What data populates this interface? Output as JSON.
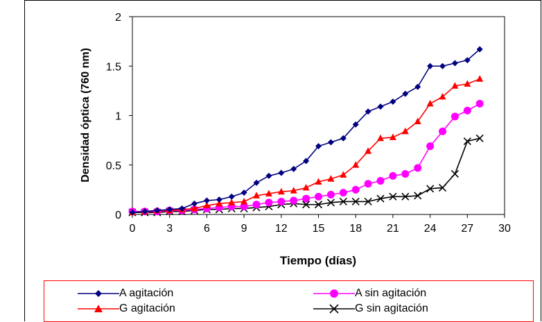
{
  "chart_data": {
    "type": "line",
    "title": "",
    "xlabel": "Tiempo (días)",
    "ylabel": "Densidad óptica (760 nm)",
    "xlim": [
      0,
      30
    ],
    "ylim": [
      0,
      2
    ],
    "x_ticks": [
      "0",
      "3",
      "6",
      "9",
      "12",
      "15",
      "18",
      "21",
      "24",
      "27",
      "30"
    ],
    "y_ticks": [
      "0",
      "0.5",
      "1",
      "1.5",
      "2"
    ],
    "grid": false,
    "legend_position": "bottom",
    "x": [
      0,
      1,
      2,
      3,
      4,
      5,
      6,
      7,
      8,
      9,
      10,
      11,
      12,
      13,
      14,
      15,
      16,
      17,
      18,
      19,
      20,
      21,
      22,
      23,
      24,
      25,
      26,
      27,
      28
    ],
    "series": [
      {
        "name": "A agitación",
        "color": "#000080",
        "marker": "diamond",
        "values": [
          0.02,
          0.03,
          0.04,
          0.05,
          0.06,
          0.11,
          0.14,
          0.15,
          0.18,
          0.22,
          0.32,
          0.39,
          0.42,
          0.46,
          0.54,
          0.69,
          0.73,
          0.77,
          0.91,
          1.04,
          1.09,
          1.14,
          1.22,
          1.29,
          1.5,
          1.5,
          1.53,
          1.56,
          1.67
        ]
      },
      {
        "name": "G agitación",
        "color": "#ff0000",
        "marker": "triangle",
        "values": [
          0.02,
          0.03,
          0.04,
          0.04,
          0.05,
          0.06,
          0.09,
          0.11,
          0.12,
          0.13,
          0.19,
          0.21,
          0.23,
          0.24,
          0.27,
          0.33,
          0.36,
          0.4,
          0.5,
          0.64,
          0.77,
          0.78,
          0.84,
          0.94,
          1.12,
          1.19,
          1.3,
          1.32,
          1.37
        ]
      },
      {
        "name": "A sin agitación",
        "color": "#ff00ff",
        "marker": "circle",
        "values": [
          0.03,
          0.03,
          0.03,
          0.04,
          0.04,
          0.05,
          0.06,
          0.07,
          0.08,
          0.08,
          0.1,
          0.12,
          0.13,
          0.14,
          0.16,
          0.18,
          0.2,
          0.22,
          0.25,
          0.31,
          0.34,
          0.39,
          0.41,
          0.47,
          0.69,
          0.84,
          0.99,
          1.05,
          1.12
        ]
      },
      {
        "name": "G sin agitación",
        "color": "#000000",
        "marker": "x",
        "values": [
          0.02,
          0.02,
          0.02,
          0.03,
          0.03,
          0.04,
          0.05,
          0.05,
          0.06,
          0.06,
          0.07,
          0.08,
          0.1,
          0.11,
          0.1,
          0.1,
          0.12,
          0.13,
          0.13,
          0.13,
          0.16,
          0.18,
          0.18,
          0.19,
          0.26,
          0.27,
          0.41,
          0.74,
          0.77
        ]
      }
    ]
  },
  "legend": {
    "items": [
      {
        "label": "A agitación"
      },
      {
        "label": "A sin agitación"
      },
      {
        "label": "G agitación"
      },
      {
        "label": "G sin agitación"
      }
    ]
  }
}
